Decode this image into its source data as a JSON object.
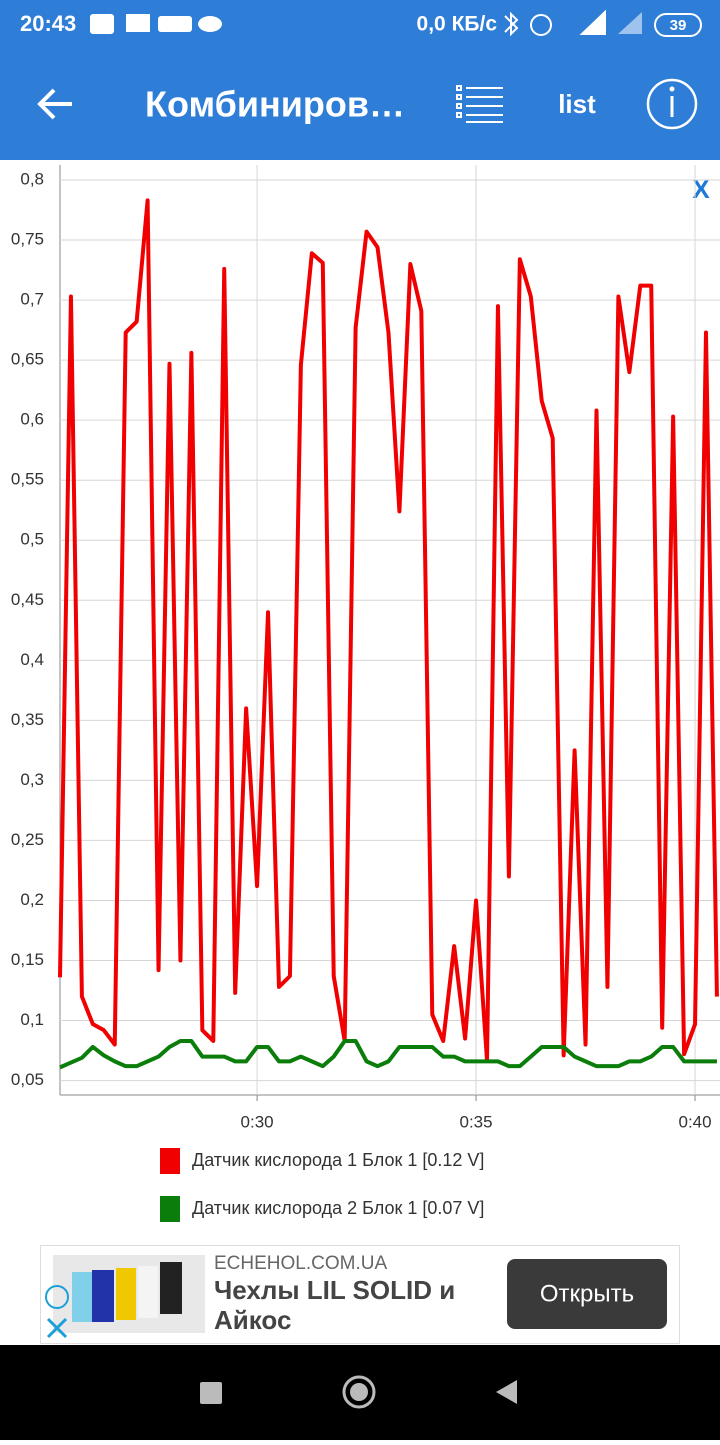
{
  "status_bar": {
    "time": "20:43",
    "speed": "0,0 КБ/с",
    "battery": "39"
  },
  "app_bar": {
    "title": "Комбиниров…",
    "list_button": "list"
  },
  "chart_data": {
    "type": "line",
    "close_label": "X",
    "x": [
      25.5,
      25.75,
      26,
      26.25,
      26.5,
      26.75,
      27,
      27.25,
      27.5,
      27.75,
      28,
      28.25,
      28.5,
      28.75,
      29,
      29.25,
      29.5,
      29.75,
      30,
      30.25,
      30.5,
      30.75,
      31,
      31.25,
      31.5,
      31.75,
      32,
      32.25,
      32.5,
      32.75,
      33,
      33.25,
      33.5,
      33.75,
      34,
      34.25,
      34.5,
      34.75,
      35,
      35.25,
      35.5,
      35.75,
      36,
      36.25,
      36.5,
      36.75,
      37,
      37.25,
      37.5,
      37.75,
      38,
      38.25,
      38.5,
      38.75,
      39,
      39.25,
      39.5,
      39.75,
      40,
      40.25,
      40.5
    ],
    "series": [
      {
        "name": "Датчик кислорода 1 Блок 1 [0.12 V]",
        "color": "#f00000",
        "values": [
          0.136,
          0.703,
          0.12,
          0.097,
          0.092,
          0.08,
          0.673,
          0.682,
          0.783,
          0.142,
          0.647,
          0.15,
          0.656,
          0.092,
          0.083,
          0.726,
          0.123,
          0.36,
          0.212,
          0.44,
          0.128,
          0.137,
          0.646,
          0.739,
          0.731,
          0.137,
          0.083,
          0.677,
          0.757,
          0.744,
          0.673,
          0.524,
          0.73,
          0.691,
          0.105,
          0.083,
          0.162,
          0.085,
          0.2,
          0.067,
          0.695,
          0.22,
          0.734,
          0.703,
          0.616,
          0.585,
          0.071,
          0.325,
          0.08,
          0.608,
          0.128,
          0.703,
          0.64,
          0.712,
          0.712,
          0.094,
          0.603,
          0.072,
          0.097,
          0.673,
          0.12
        ]
      },
      {
        "name": "Датчик кислорода 2 Блок 1 [0.07 V]",
        "color": "#0a7d0a",
        "values": [
          0.061,
          0.065,
          0.069,
          0.078,
          0.071,
          0.066,
          0.062,
          0.062,
          0.066,
          0.07,
          0.078,
          0.083,
          0.083,
          0.07,
          0.07,
          0.07,
          0.066,
          0.066,
          0.078,
          0.078,
          0.066,
          0.066,
          0.07,
          0.066,
          0.062,
          0.07,
          0.083,
          0.083,
          0.066,
          0.062,
          0.066,
          0.078,
          0.078,
          0.078,
          0.078,
          0.07,
          0.07,
          0.066,
          0.066,
          0.066,
          0.066,
          0.062,
          0.062,
          0.07,
          0.078,
          0.078,
          0.078,
          0.07,
          0.066,
          0.062,
          0.062,
          0.062,
          0.066,
          0.066,
          0.07,
          0.078,
          0.078,
          0.066,
          0.066,
          0.066,
          0.066
        ]
      }
    ],
    "xlim": [
      25.5,
      40.57
    ],
    "xticks": [
      {
        "value": 30,
        "label": "0:30"
      },
      {
        "value": 35,
        "label": "0:35"
      },
      {
        "value": 40,
        "label": "0:40"
      }
    ],
    "ylim": [
      0.038,
      0.8125
    ],
    "yticks": [
      {
        "value": 0.05,
        "label": "0,05"
      },
      {
        "value": 0.1,
        "label": "0,1"
      },
      {
        "value": 0.15,
        "label": "0,15"
      },
      {
        "value": 0.2,
        "label": "0,2"
      },
      {
        "value": 0.25,
        "label": "0,25"
      },
      {
        "value": 0.3,
        "label": "0,3"
      },
      {
        "value": 0.35,
        "label": "0,35"
      },
      {
        "value": 0.4,
        "label": "0,4"
      },
      {
        "value": 0.45,
        "label": "0,45"
      },
      {
        "value": 0.5,
        "label": "0,5"
      },
      {
        "value": 0.55,
        "label": "0,55"
      },
      {
        "value": 0.6,
        "label": "0,6"
      },
      {
        "value": 0.65,
        "label": "0,65"
      },
      {
        "value": 0.7,
        "label": "0,7"
      },
      {
        "value": 0.75,
        "label": "0,75"
      },
      {
        "value": 0.8,
        "label": "0,8"
      }
    ],
    "grid": true,
    "legend": "bottom"
  },
  "ad": {
    "domain": "ECHEHOL.COM.UA",
    "title_lines": [
      "Чехлы LIL SOLID и",
      "Айкос"
    ],
    "button": "Открыть"
  }
}
